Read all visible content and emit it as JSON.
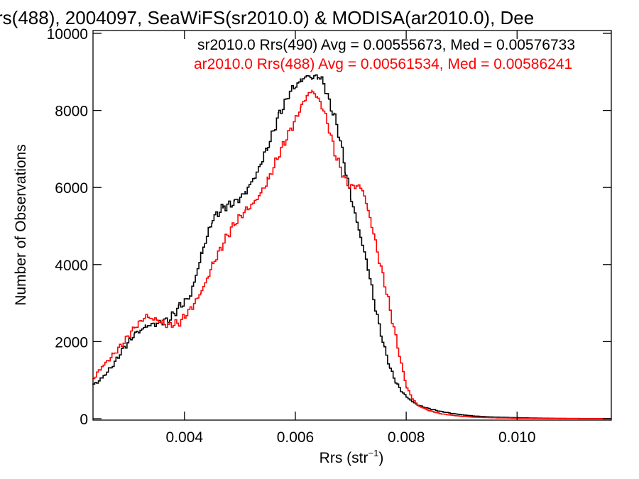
{
  "chart_data": {
    "type": "line",
    "title": "rs(488), 2004097, SeaWiFS(sr2010.0) & MODISA(ar2010.0), Dee",
    "xlabel": "Rrs (str",
    "xlabel_sup": "−1",
    "xlabel_close": ")",
    "ylabel": "Number of Observations",
    "xlim": [
      0.00235,
      0.0117
    ],
    "ylim": [
      0,
      10000
    ],
    "x_ticks": [
      0.004,
      0.006,
      0.008,
      0.01
    ],
    "x_tick_labels": [
      "0.004",
      "0.006",
      "0.008",
      "0.010"
    ],
    "y_ticks": [
      0,
      2000,
      4000,
      6000,
      8000,
      10000
    ],
    "y_tick_labels": [
      "0",
      "2000",
      "4000",
      "6000",
      "8000",
      "10000"
    ],
    "grid": false,
    "legend_position": "top-right",
    "step": true,
    "series": [
      {
        "name": "sr2010.0 Rrs(490) Avg = 0.00555673, Med = 0.00576733",
        "color": "#000000",
        "points": [
          [
            0.00235,
            880
          ],
          [
            0.0025,
            1050
          ],
          [
            0.0027,
            1400
          ],
          [
            0.0029,
            1850
          ],
          [
            0.0031,
            2200
          ],
          [
            0.0033,
            2400
          ],
          [
            0.0035,
            2480
          ],
          [
            0.0037,
            2560
          ],
          [
            0.0039,
            2900
          ],
          [
            0.0041,
            3200
          ],
          [
            0.0043,
            4300
          ],
          [
            0.0045,
            5200
          ],
          [
            0.0047,
            5500
          ],
          [
            0.0049,
            5600
          ],
          [
            0.0051,
            5900
          ],
          [
            0.0053,
            6400
          ],
          [
            0.0055,
            7100
          ],
          [
            0.0057,
            7900
          ],
          [
            0.0059,
            8500
          ],
          [
            0.0061,
            8800
          ],
          [
            0.0062,
            8900
          ],
          [
            0.0063,
            8850
          ],
          [
            0.0064,
            8900
          ],
          [
            0.0065,
            8700
          ],
          [
            0.0066,
            8200
          ],
          [
            0.0067,
            7800
          ],
          [
            0.0068,
            7200
          ],
          [
            0.0069,
            6400
          ],
          [
            0.007,
            5700
          ],
          [
            0.0071,
            5100
          ],
          [
            0.0072,
            4500
          ],
          [
            0.0073,
            3900
          ],
          [
            0.0074,
            3100
          ],
          [
            0.0075,
            2400
          ],
          [
            0.0076,
            1800
          ],
          [
            0.0077,
            1300
          ],
          [
            0.0078,
            950
          ],
          [
            0.0079,
            720
          ],
          [
            0.008,
            560
          ],
          [
            0.0081,
            440
          ],
          [
            0.0082,
            350
          ],
          [
            0.0084,
            260
          ],
          [
            0.0086,
            190
          ],
          [
            0.0088,
            140
          ],
          [
            0.009,
            100
          ],
          [
            0.0092,
            70
          ],
          [
            0.0095,
            45
          ],
          [
            0.01,
            25
          ],
          [
            0.0105,
            12
          ],
          [
            0.011,
            5
          ],
          [
            0.0117,
            2
          ]
        ]
      },
      {
        "name": "ar2010.0 Rrs(488) Avg = 0.00561534, Med = 0.00586241",
        "color": "#ff0000",
        "points": [
          [
            0.00235,
            1050
          ],
          [
            0.0025,
            1350
          ],
          [
            0.0027,
            1650
          ],
          [
            0.0029,
            2000
          ],
          [
            0.0031,
            2400
          ],
          [
            0.0033,
            2650
          ],
          [
            0.0035,
            2550
          ],
          [
            0.0037,
            2420
          ],
          [
            0.0039,
            2500
          ],
          [
            0.0041,
            2850
          ],
          [
            0.0043,
            3300
          ],
          [
            0.0045,
            4000
          ],
          [
            0.0047,
            4600
          ],
          [
            0.0049,
            5100
          ],
          [
            0.0051,
            5400
          ],
          [
            0.0053,
            5700
          ],
          [
            0.0055,
            6200
          ],
          [
            0.0057,
            6900
          ],
          [
            0.0059,
            7500
          ],
          [
            0.0061,
            8100
          ],
          [
            0.0062,
            8400
          ],
          [
            0.0063,
            8500
          ],
          [
            0.0064,
            8300
          ],
          [
            0.0065,
            8000
          ],
          [
            0.0066,
            7500
          ],
          [
            0.0067,
            6900
          ],
          [
            0.0068,
            6500
          ],
          [
            0.0069,
            6150
          ],
          [
            0.007,
            6000
          ],
          [
            0.0071,
            6050
          ],
          [
            0.0072,
            5950
          ],
          [
            0.0073,
            5400
          ],
          [
            0.0074,
            4800
          ],
          [
            0.0075,
            4100
          ],
          [
            0.0076,
            3500
          ],
          [
            0.0077,
            2800
          ],
          [
            0.0078,
            2100
          ],
          [
            0.0079,
            1400
          ],
          [
            0.008,
            800
          ],
          [
            0.0081,
            520
          ],
          [
            0.0082,
            340
          ],
          [
            0.0084,
            210
          ],
          [
            0.0086,
            130
          ],
          [
            0.0088,
            90
          ],
          [
            0.009,
            60
          ],
          [
            0.0092,
            40
          ],
          [
            0.0095,
            25
          ],
          [
            0.01,
            12
          ],
          [
            0.0105,
            6
          ],
          [
            0.011,
            3
          ],
          [
            0.0117,
            1
          ]
        ]
      }
    ]
  }
}
